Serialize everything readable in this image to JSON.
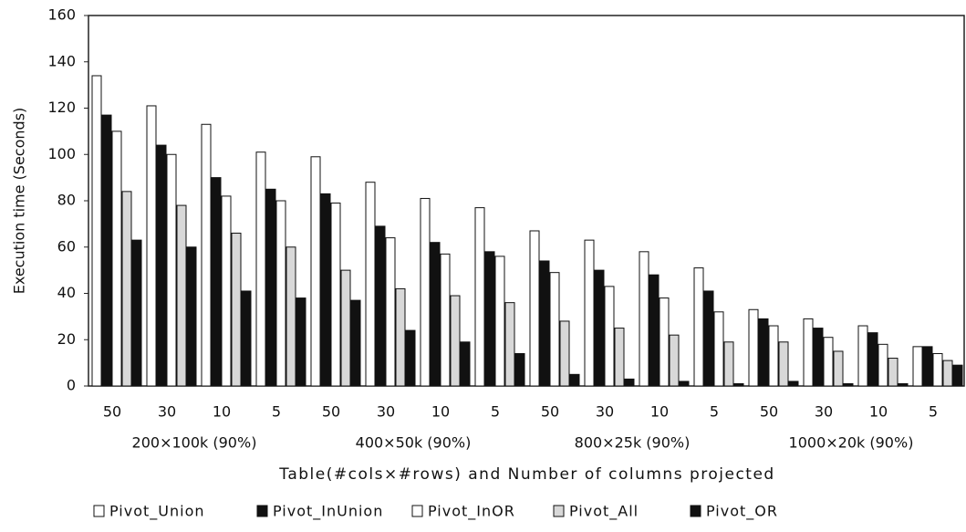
{
  "chart_data": {
    "type": "bar",
    "y_label": "Execution time (Seconds)",
    "x_label": "Table(#cols×#rows) and Number of columns projected",
    "categories": [
      "50",
      "30",
      "10",
      "5",
      "50",
      "30",
      "10",
      "5",
      "50",
      "30",
      "10",
      "5",
      "50",
      "30",
      "10",
      "5"
    ],
    "groups": [
      "200×100k (90%)",
      "400×50k (90%)",
      "800×25k (90%)",
      "1000×20k (90%)"
    ],
    "series": [
      {
        "name": "Pivot_Union",
        "color": "#ffffff",
        "values": [
          134,
          121,
          113,
          101,
          99,
          88,
          81,
          77,
          67,
          63,
          58,
          51,
          33,
          29,
          26,
          17
        ]
      },
      {
        "name": "Pivot_InUnion",
        "color": "#111111",
        "values": [
          117,
          104,
          90,
          85,
          83,
          69,
          62,
          58,
          54,
          50,
          48,
          41,
          29,
          25,
          23,
          17
        ]
      },
      {
        "name": "Pivot_InOR",
        "color": "#ffffff",
        "values": [
          110,
          100,
          82,
          80,
          79,
          64,
          57,
          56,
          49,
          43,
          38,
          32,
          26,
          21,
          18,
          14
        ]
      },
      {
        "name": "Pivot_All",
        "color": "#d8d8d8",
        "values": [
          84,
          78,
          66,
          60,
          50,
          42,
          39,
          36,
          28,
          25,
          22,
          19,
          19,
          15,
          12,
          11
        ]
      },
      {
        "name": "Pivot_OR",
        "color": "#111111",
        "values": [
          63,
          60,
          41,
          38,
          37,
          24,
          19,
          14,
          5,
          3,
          2,
          1,
          2,
          1,
          1,
          9
        ]
      }
    ],
    "ylim": [
      0,
      160
    ],
    "yticks": [
      0,
      20,
      40,
      60,
      80,
      100,
      120,
      140,
      160
    ],
    "grid": false
  }
}
